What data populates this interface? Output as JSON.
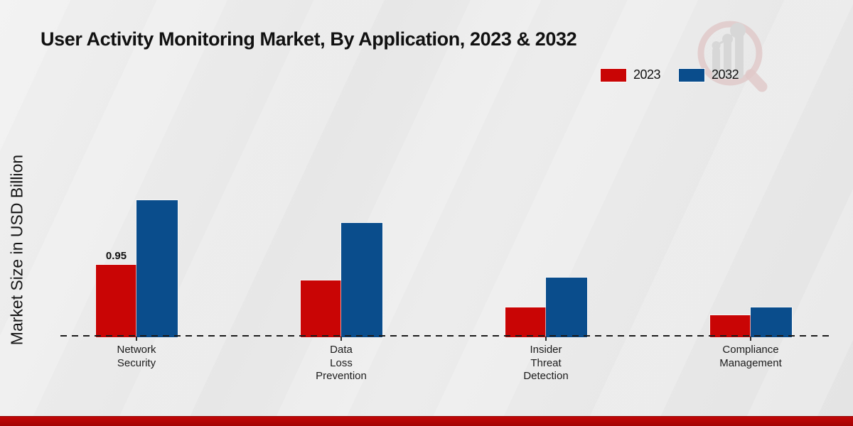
{
  "header": {
    "title": "User Activity Monitoring Market, By Application, 2023 & 2032"
  },
  "y_axis_label": "Market Size in USD Billion",
  "colors": {
    "bar_2023": "#c90505",
    "bar_2032": "#0a4d8c",
    "footer_bar": "#b30505",
    "baseline": "#1c1c1c",
    "logo_pink": "#dcbcbc",
    "logo_gray": "#d2d2d2"
  },
  "legend": {
    "items": [
      {
        "label": "2023",
        "color": "#c90505"
      },
      {
        "label": "2032",
        "color": "#0a4d8c"
      }
    ]
  },
  "chart_data": {
    "type": "bar",
    "title": "User Activity Monitoring Market, By Application, 2023 & 2032",
    "xlabel": "",
    "ylabel": "Market Size in USD Billion",
    "categories": [
      "Network\nSecurity",
      "Data\nLoss\nPrevention",
      "Insider\nThreat\nDetection",
      "Compliance\nManagement"
    ],
    "series": [
      {
        "name": "2023",
        "color": "#c90505",
        "values": [
          0.95,
          0.74,
          0.38,
          0.28
        ],
        "data_labels": [
          "0.95",
          "",
          "",
          ""
        ]
      },
      {
        "name": "2032",
        "color": "#0a4d8c",
        "values": [
          1.81,
          1.51,
          0.78,
          0.38
        ],
        "data_labels": [
          "",
          "",
          "",
          ""
        ]
      }
    ],
    "ylim": [
      0,
      2.0
    ],
    "grid": false,
    "y_axis_ticks_visible": false,
    "baseline_style": "dashed",
    "legend_position": "top-right",
    "annotations": [
      "Only the first 2023 bar (Network Security) carries a printed value label: 0.95"
    ]
  }
}
